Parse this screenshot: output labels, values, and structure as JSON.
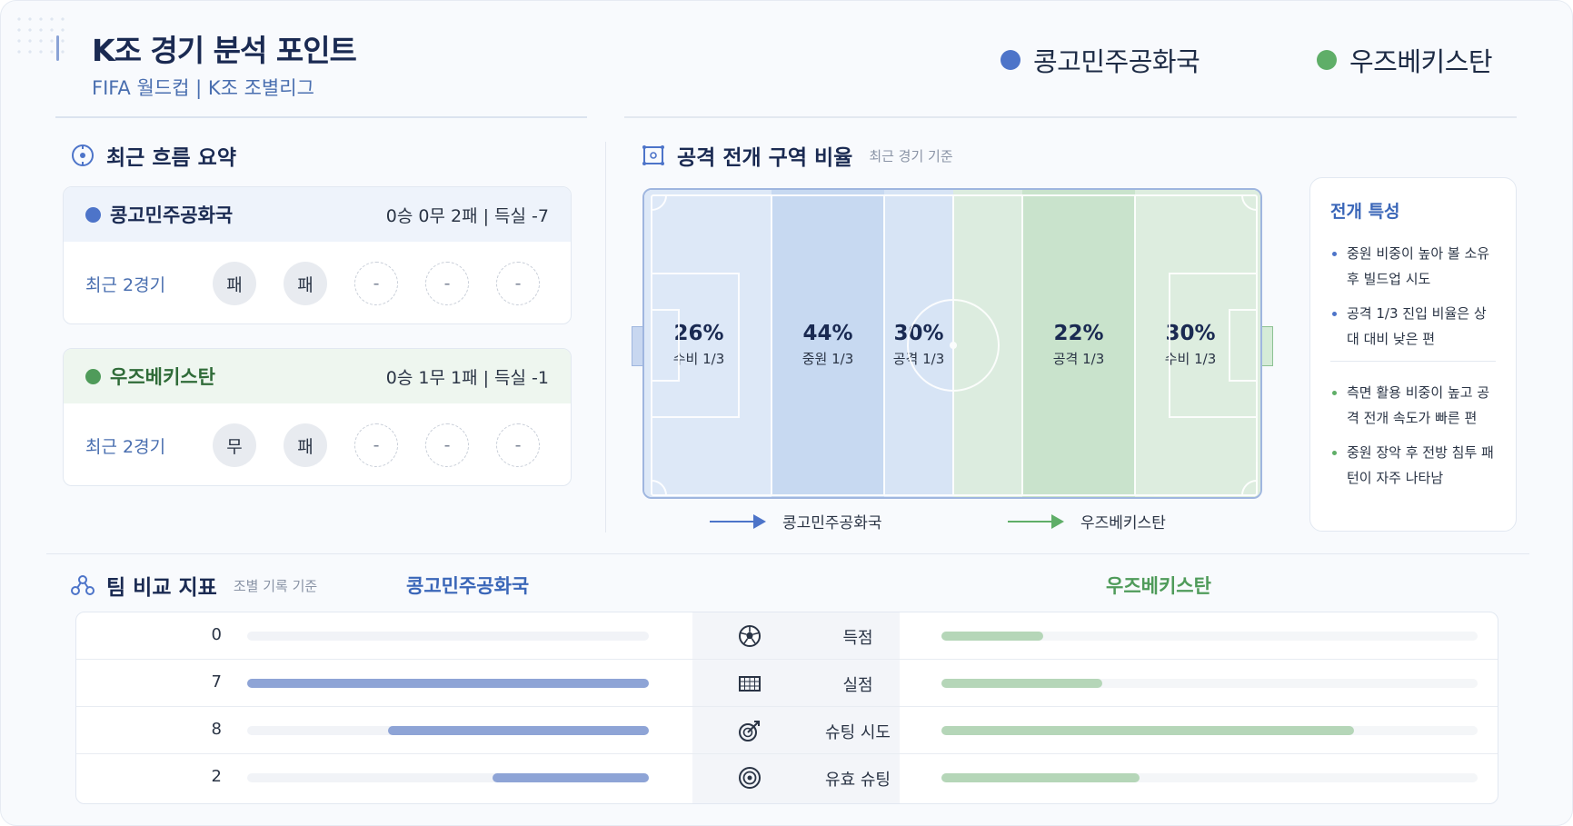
{
  "header": {
    "title": "K조 경기 분석 포인트",
    "subtitle": "FIFA 월드컵 | K조 조별리그"
  },
  "teams": {
    "a": {
      "name": "콩고민주공화국",
      "color": "#4d74c9"
    },
    "b": {
      "name": "우즈베키스탄",
      "color": "#5fae68"
    }
  },
  "recent": {
    "title": "최근 흐름 요약",
    "cards": [
      {
        "team": "콩고민주공화국",
        "record": "0승 0무 2패 | 득실 -7",
        "label": "최근 2경기",
        "results": [
          "패",
          "패",
          "-",
          "-",
          "-"
        ]
      },
      {
        "team": "우즈베키스탄",
        "record": "0승 1무 1패 | 득실 -1",
        "label": "최근 2경기",
        "results": [
          "무",
          "패",
          "-",
          "-",
          "-"
        ]
      }
    ]
  },
  "zones": {
    "title": "공격 전개 구역 비율",
    "note": "최근 경기 기준",
    "items": [
      {
        "pct": "26%",
        "name": "수비 1/3"
      },
      {
        "pct": "44%",
        "name": "중원 1/3"
      },
      {
        "pct": "30%",
        "name": "공격 1/3"
      },
      {
        "pct": "22%",
        "name": "공격 1/3"
      },
      {
        "pct": "30%",
        "name": "수비 1/3"
      }
    ],
    "legend": [
      "콩고민주공화국",
      "우즈베키스탄"
    ]
  },
  "traits": {
    "title": "전개 특성",
    "team_a": [
      "중원 비중이 높아 볼 소유 후 빌드업 시도",
      "공격 1/3 진입 비율은 상대 대비 낮은 편"
    ],
    "team_b": [
      "측면 활용 비중이 높고 공격 전개 속도가 빠른 편",
      "중원 장악 후 전방 침투 패턴이 자주 나타남"
    ]
  },
  "compare": {
    "title": "팀 비교 지표",
    "note": "조별 기록 기준",
    "team_a": "콩고민주공화국",
    "team_b": "우즈베키스탄",
    "rows": [
      {
        "label": "득점",
        "icon": "soccer-ball-icon",
        "a_value": "0",
        "a_fill": 0.0,
        "b_fill": 0.19
      },
      {
        "label": "실점",
        "icon": "goal-net-icon",
        "a_value": "7",
        "a_fill": 1.0,
        "b_fill": 0.3
      },
      {
        "label": "슈팅 시도",
        "icon": "target-arrow-icon",
        "a_value": "8",
        "a_fill": 0.65,
        "b_fill": 0.77
      },
      {
        "label": "유효 슈팅",
        "icon": "target-icon",
        "a_value": "2",
        "a_fill": 0.39,
        "b_fill": 0.37
      }
    ]
  }
}
